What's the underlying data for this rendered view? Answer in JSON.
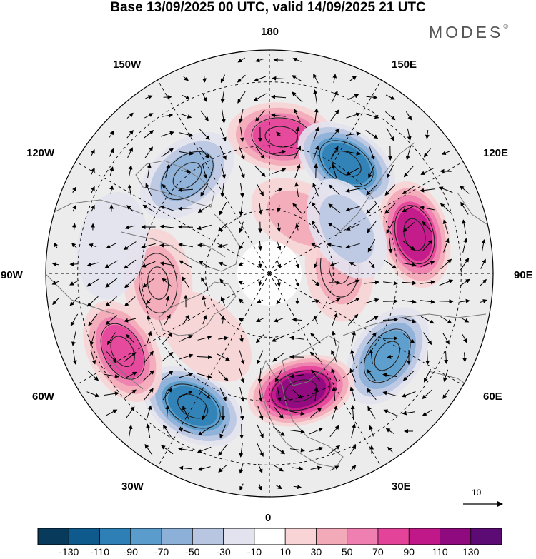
{
  "title": "Base 13/09/2025 00 UTC, valid 14/09/2025 21 UTC",
  "brand": "MODES",
  "brand_mark": "©",
  "longitude_labels": {
    "lon_180": "180",
    "lon_150e": "150E",
    "lon_120e": "120E",
    "lon_90e": "90E",
    "lon_60e": "60E",
    "lon_30e": "30E",
    "lon_0": "0",
    "lon_30w": "30W",
    "lon_60w": "60W",
    "lon_90w": "90W",
    "lon_120w": "120W",
    "lon_150w": "150W"
  },
  "reference_vector": {
    "label": "10"
  },
  "colorbar": {
    "colors": [
      "#083a5c",
      "#0f5a8c",
      "#2e7fb5",
      "#5a9ccb",
      "#8cb0d8",
      "#b9c6e2",
      "#e3e3f0",
      "#ffffff",
      "#f8d4d6",
      "#f2a9b8",
      "#ee7fb0",
      "#e3449a",
      "#c01789",
      "#8e0a7e",
      "#5c0a74"
    ],
    "tick_labels": [
      "-130",
      "-110",
      "-90",
      "-70",
      "-50",
      "-30",
      "-10",
      "10",
      "30",
      "50",
      "70",
      "90",
      "110",
      "130"
    ]
  },
  "anomaly_centers": [
    {
      "lon": 175,
      "lat": 47,
      "value": 85
    },
    {
      "lon": 145,
      "lat": 48,
      "value": -100
    },
    {
      "lon": 105,
      "lat": 43,
      "value": 90
    },
    {
      "lon": 95,
      "lat": 68,
      "value": 40
    },
    {
      "lon": 55,
      "lat": 45,
      "value": -80
    },
    {
      "lon": 15,
      "lat": 52,
      "value": 110
    },
    {
      "lon": -30,
      "lat": 42,
      "value": -90
    },
    {
      "lon": -62,
      "lat": 38,
      "value": 70
    },
    {
      "lon": -45,
      "lat": 62,
      "value": 20
    },
    {
      "lon": -85,
      "lat": 55,
      "value": 45
    },
    {
      "lon": -140,
      "lat": 50,
      "value": -65
    },
    {
      "lon": 150,
      "lat": 70,
      "value": 35
    },
    {
      "lon": 120,
      "lat": 62,
      "value": -35
    },
    {
      "lon": -100,
      "lat": 40,
      "value": -20
    }
  ]
}
